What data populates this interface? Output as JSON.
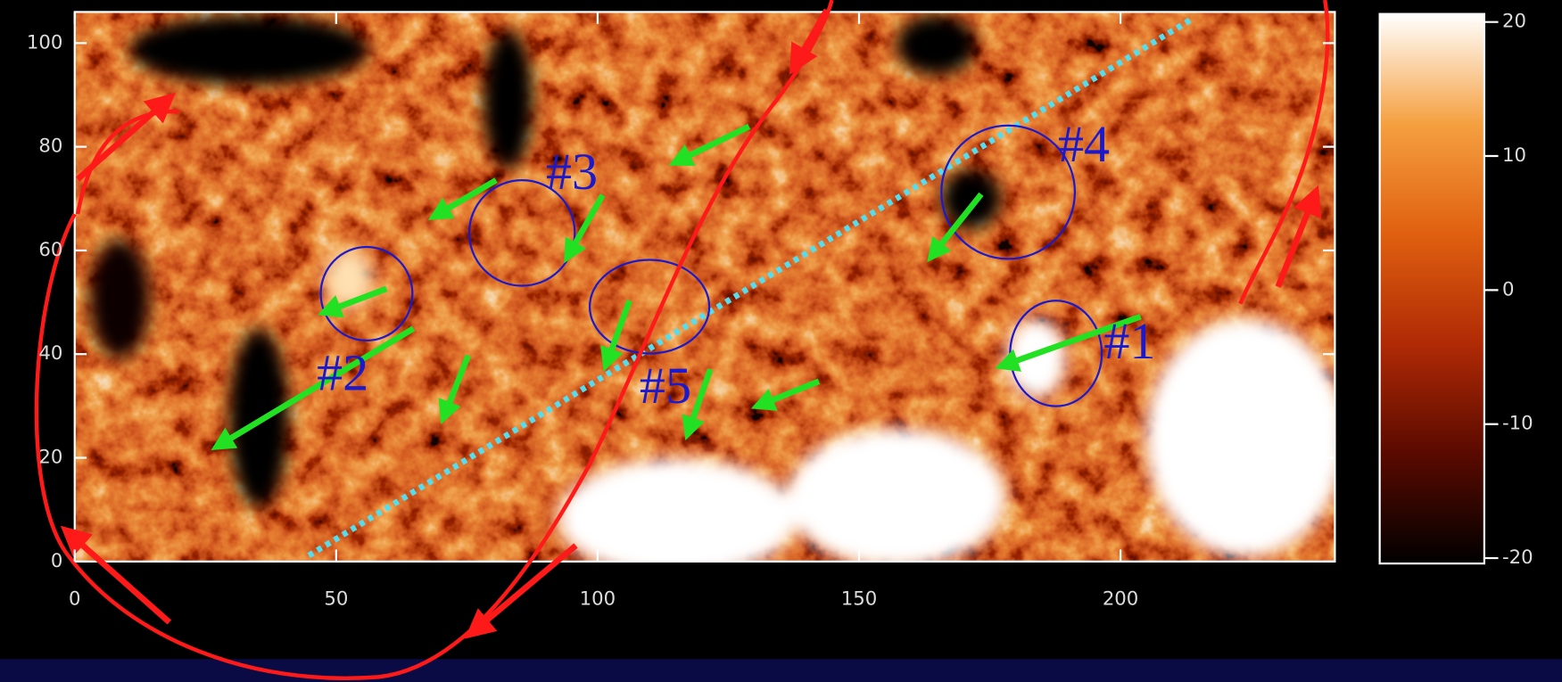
{
  "chart_data": {
    "type": "heatmap",
    "xlim": [
      0,
      241
    ],
    "xticks": [
      0,
      50,
      100,
      150,
      200
    ],
    "ylim": [
      0,
      106
    ],
    "yticks": [
      0,
      20,
      40,
      60,
      80,
      100
    ],
    "colorbar": {
      "ylim": [
        -20.4,
        20.6
      ],
      "yticks": [
        -20,
        -10,
        0,
        10,
        20
      ],
      "colors": [
        "#000000",
        "#5a0a00",
        "#b02a05",
        "#e06010",
        "#f5a040",
        "#ffffff"
      ]
    },
    "annotations": [
      "#1",
      "#2",
      "#3",
      "#4",
      "#5"
    ]
  }
}
